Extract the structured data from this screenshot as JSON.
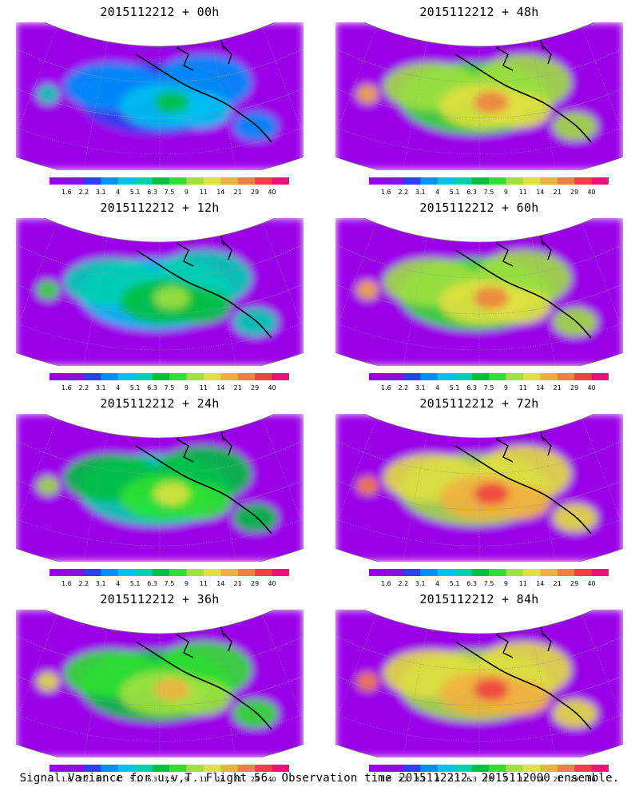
{
  "panels": [
    {
      "title": "2015112212 + 00h"
    },
    {
      "title": "2015112212 + 48h"
    },
    {
      "title": "2015112212 + 12h"
    },
    {
      "title": "2015112212 + 60h"
    },
    {
      "title": "2015112212 + 24h"
    },
    {
      "title": "2015112212 + 72h"
    },
    {
      "title": "2015112212 + 36h"
    },
    {
      "title": "2015112212 + 84h"
    }
  ],
  "colorbar": {
    "labels": [
      "1.6",
      "2.2",
      "3.1",
      "4",
      "5.1",
      "6.3",
      "7.5",
      "9",
      "11",
      "14",
      "21",
      "29",
      "40"
    ],
    "colors": [
      "#9a00e8",
      "#8a10e0",
      "#2c40f0",
      "#0090f8",
      "#00c0f0",
      "#00d0b0",
      "#00c040",
      "#30e030",
      "#a0e040",
      "#e0e040",
      "#f0b040",
      "#f08040",
      "#f04040",
      "#f0107a"
    ]
  },
  "footer": "Signal Variance for u,v,T. Flight 56. Observation time 2015112212. 2015112000 ensemble."
}
